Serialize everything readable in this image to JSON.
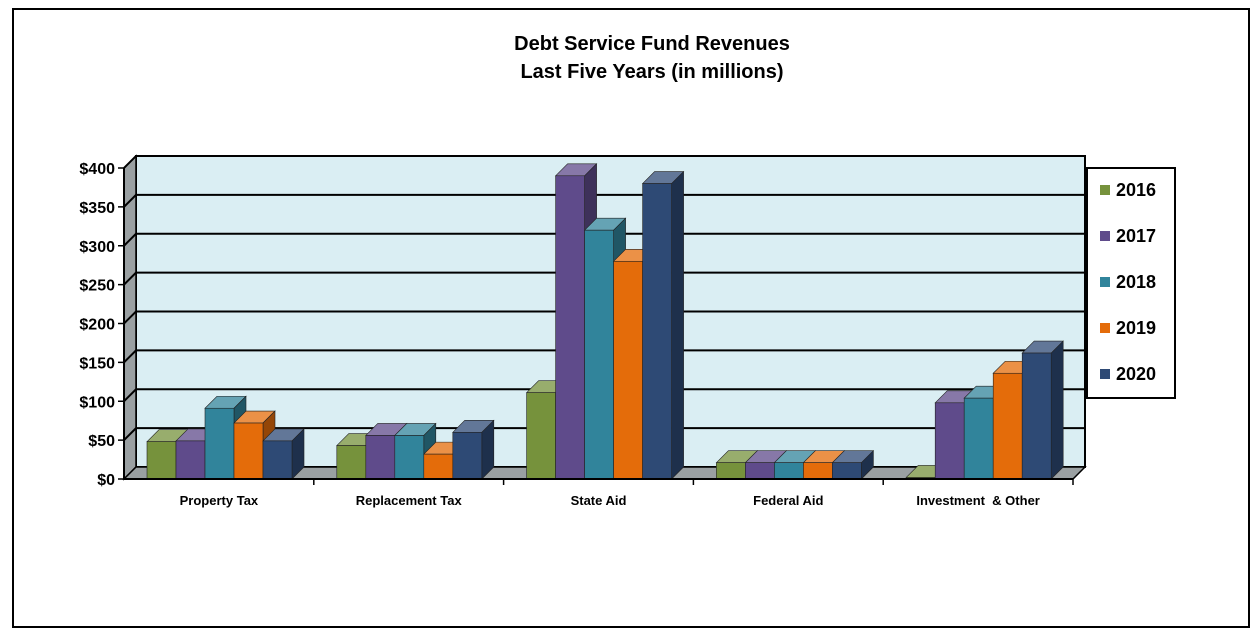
{
  "chart_data": {
    "type": "bar",
    "title": "Debt Service Fund Revenues",
    "subtitle": "Last Five Years (in millions)",
    "categories": [
      "Property Tax",
      "Replacement Tax",
      "State Aid",
      "Federal Aid",
      "Investment  & Other"
    ],
    "series": [
      {
        "name": "2016",
        "color": "#76923c",
        "values": [
          48,
          43,
          111,
          21,
          2
        ]
      },
      {
        "name": "2017",
        "color": "#5f4b8b",
        "values": [
          49,
          56,
          390,
          21,
          98
        ]
      },
      {
        "name": "2018",
        "color": "#31849b",
        "values": [
          91,
          56,
          320,
          21,
          104
        ]
      },
      {
        "name": "2019",
        "color": "#e46c0a",
        "values": [
          72,
          32,
          280,
          21,
          136
        ]
      },
      {
        "name": "2020",
        "color": "#2e4a75",
        "values": [
          49,
          60,
          380,
          21,
          162
        ]
      }
    ],
    "y_ticks": [
      "$0",
      "$50",
      "$100",
      "$150",
      "$200",
      "$250",
      "$300",
      "$350",
      "$400"
    ],
    "ylim": [
      0,
      400
    ],
    "grid": true,
    "legend": "right",
    "plot_background": "#daeef3"
  }
}
